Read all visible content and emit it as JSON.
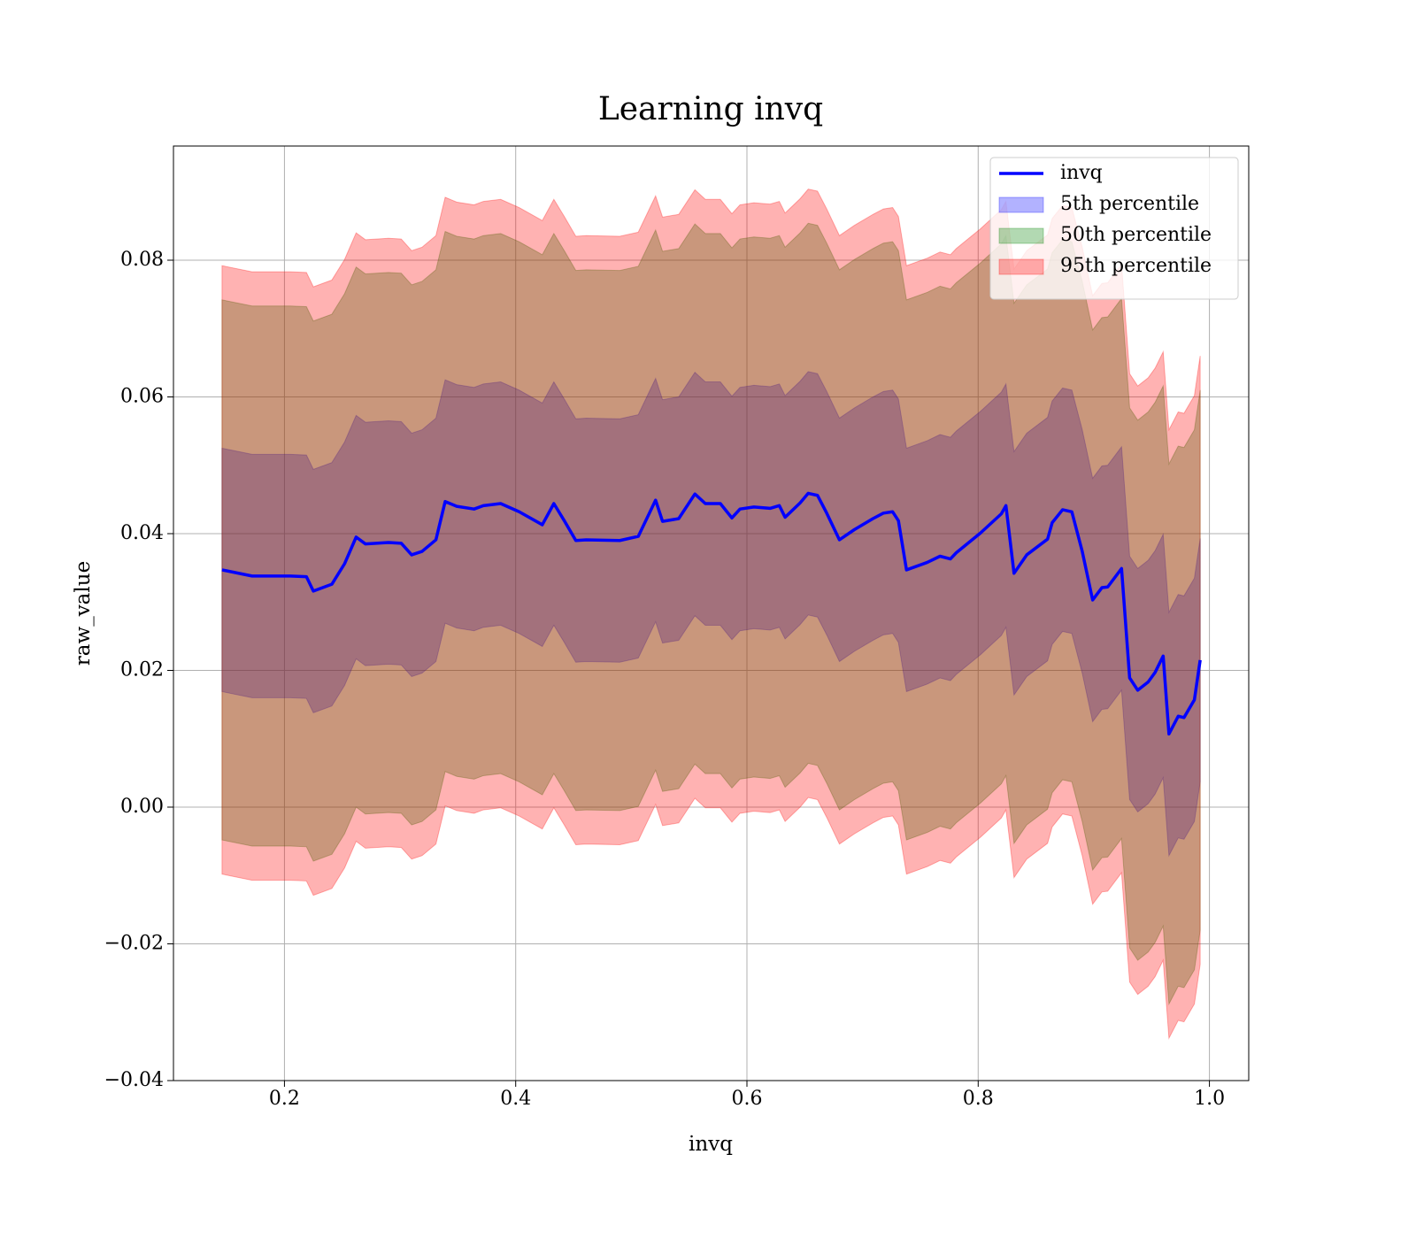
{
  "chart_data": {
    "type": "line",
    "title": "Learning invq",
    "xlabel": "invq",
    "ylabel": "raw_value",
    "x": [
      0.146,
      0.172,
      0.205,
      0.219,
      0.225,
      0.241,
      0.252,
      0.262,
      0.27,
      0.29,
      0.301,
      0.31,
      0.319,
      0.331,
      0.339,
      0.349,
      0.364,
      0.372,
      0.387,
      0.403,
      0.423,
      0.433,
      0.442,
      0.452,
      0.461,
      0.49,
      0.506,
      0.521,
      0.527,
      0.541,
      0.555,
      0.564,
      0.577,
      0.587,
      0.594,
      0.606,
      0.62,
      0.628,
      0.633,
      0.646,
      0.653,
      0.661,
      0.669,
      0.68,
      0.693,
      0.709,
      0.718,
      0.726,
      0.731,
      0.738,
      0.756,
      0.767,
      0.776,
      0.781,
      0.802,
      0.82,
      0.824,
      0.831,
      0.842,
      0.86,
      0.864,
      0.873,
      0.881,
      0.89,
      0.899,
      0.907,
      0.912,
      0.924,
      0.931,
      0.938,
      0.947,
      0.953,
      0.96,
      0.965,
      0.973,
      0.978,
      0.987,
      0.992
    ],
    "series": [
      {
        "name": "invq",
        "color": "#0000ff",
        "values": [
          0.0347,
          0.0338,
          0.0338,
          0.0337,
          0.0316,
          0.0326,
          0.0356,
          0.0395,
          0.0385,
          0.0387,
          0.0386,
          0.0369,
          0.0374,
          0.0391,
          0.0447,
          0.044,
          0.0436,
          0.0441,
          0.0444,
          0.0432,
          0.0413,
          0.0444,
          0.0419,
          0.039,
          0.0391,
          0.039,
          0.0396,
          0.0449,
          0.0418,
          0.0422,
          0.0458,
          0.0444,
          0.0444,
          0.0423,
          0.0436,
          0.0439,
          0.0437,
          0.0441,
          0.0424,
          0.0445,
          0.0459,
          0.0456,
          0.043,
          0.0391,
          0.0406,
          0.0422,
          0.043,
          0.0432,
          0.0419,
          0.0347,
          0.0358,
          0.0367,
          0.0363,
          0.0372,
          0.0401,
          0.0429,
          0.0441,
          0.0342,
          0.0369,
          0.0392,
          0.0416,
          0.0435,
          0.0432,
          0.0374,
          0.0303,
          0.0321,
          0.0322,
          0.0349,
          0.0189,
          0.0171,
          0.0183,
          0.0197,
          0.0221,
          0.0107,
          0.0133,
          0.0131,
          0.0157,
          0.0215
        ]
      }
    ],
    "bands": [
      {
        "name": "5th percentile",
        "color": "#0000ff",
        "lower": [
          0.0169,
          0.016,
          0.016,
          0.0159,
          0.0138,
          0.0148,
          0.0178,
          0.0217,
          0.0207,
          0.0209,
          0.0208,
          0.0191,
          0.0196,
          0.0213,
          0.0269,
          0.0262,
          0.0258,
          0.0263,
          0.0266,
          0.0254,
          0.0235,
          0.0266,
          0.0241,
          0.0212,
          0.0213,
          0.0212,
          0.0218,
          0.0271,
          0.024,
          0.0244,
          0.028,
          0.0266,
          0.0266,
          0.0245,
          0.0258,
          0.0261,
          0.0259,
          0.0263,
          0.0246,
          0.0267,
          0.0281,
          0.0278,
          0.0252,
          0.0213,
          0.0228,
          0.0244,
          0.0252,
          0.0254,
          0.0241,
          0.0169,
          0.018,
          0.0189,
          0.0185,
          0.0194,
          0.0223,
          0.0251,
          0.0263,
          0.0164,
          0.0191,
          0.0214,
          0.0238,
          0.0257,
          0.0254,
          0.0196,
          0.0125,
          0.0143,
          0.0144,
          0.0171,
          0.0011,
          -0.0007,
          0.0005,
          0.0019,
          0.0043,
          -0.0071,
          -0.0045,
          -0.0047,
          -0.0021,
          0.0037
        ],
        "upper": [
          0.0525,
          0.0516,
          0.0516,
          0.0515,
          0.0494,
          0.0504,
          0.0534,
          0.0573,
          0.0563,
          0.0565,
          0.0564,
          0.0547,
          0.0552,
          0.0569,
          0.0625,
          0.0618,
          0.0614,
          0.0619,
          0.0622,
          0.061,
          0.0591,
          0.0622,
          0.0597,
          0.0568,
          0.0569,
          0.0568,
          0.0574,
          0.0627,
          0.0596,
          0.06,
          0.0636,
          0.0622,
          0.0622,
          0.0601,
          0.0614,
          0.0617,
          0.0615,
          0.0619,
          0.0602,
          0.0623,
          0.0637,
          0.0634,
          0.0608,
          0.0569,
          0.0584,
          0.06,
          0.0608,
          0.061,
          0.0597,
          0.0525,
          0.0536,
          0.0545,
          0.0541,
          0.055,
          0.0579,
          0.0607,
          0.0619,
          0.052,
          0.0547,
          0.057,
          0.0594,
          0.0613,
          0.061,
          0.0552,
          0.0481,
          0.0499,
          0.05,
          0.0527,
          0.0367,
          0.0349,
          0.0361,
          0.0375,
          0.0399,
          0.0285,
          0.0311,
          0.0309,
          0.0335,
          0.0393
        ]
      },
      {
        "name": "50th percentile",
        "color": "#008000",
        "lower": [
          -0.0048,
          -0.0057,
          -0.0057,
          -0.0058,
          -0.0079,
          -0.0069,
          -0.0039,
          0,
          -0.001,
          -0.0008,
          -0.0009,
          -0.0026,
          -0.0021,
          -0.0004,
          0.0052,
          0.0045,
          0.0041,
          0.0046,
          0.0049,
          0.0037,
          0.0018,
          0.0049,
          0.0024,
          -0.0005,
          -0.0004,
          -0.0005,
          0.0001,
          0.0054,
          0.0023,
          0.0027,
          0.0063,
          0.0049,
          0.0049,
          0.0028,
          0.0041,
          0.0044,
          0.0042,
          0.0046,
          0.0029,
          0.005,
          0.0064,
          0.0061,
          0.0035,
          -0.0004,
          0.0011,
          0.0027,
          0.0035,
          0.0037,
          0.0024,
          -0.0048,
          -0.0037,
          -0.0028,
          -0.0032,
          -0.0023,
          0.0006,
          0.0034,
          0.0046,
          -0.0053,
          -0.0026,
          -0.0003,
          0.0021,
          0.004,
          0.0037,
          -0.0021,
          -0.0092,
          -0.0074,
          -0.0073,
          -0.0046,
          -0.0206,
          -0.0224,
          -0.0212,
          -0.0198,
          -0.0174,
          -0.0288,
          -0.0262,
          -0.0264,
          -0.0238,
          -0.018
        ],
        "upper": [
          0.0742,
          0.0733,
          0.0733,
          0.0732,
          0.0711,
          0.0721,
          0.0751,
          0.079,
          0.078,
          0.0782,
          0.0781,
          0.0764,
          0.0769,
          0.0786,
          0.0842,
          0.0835,
          0.0831,
          0.0836,
          0.0839,
          0.0827,
          0.0808,
          0.0839,
          0.0814,
          0.0785,
          0.0786,
          0.0785,
          0.0791,
          0.0844,
          0.0813,
          0.0817,
          0.0853,
          0.0839,
          0.0839,
          0.0818,
          0.0831,
          0.0834,
          0.0832,
          0.0836,
          0.0819,
          0.084,
          0.0854,
          0.0851,
          0.0825,
          0.0786,
          0.0801,
          0.0817,
          0.0825,
          0.0827,
          0.0814,
          0.0742,
          0.0753,
          0.0762,
          0.0758,
          0.0767,
          0.0796,
          0.0824,
          0.0836,
          0.0737,
          0.0764,
          0.0787,
          0.0811,
          0.083,
          0.0827,
          0.0769,
          0.0698,
          0.0716,
          0.0717,
          0.0744,
          0.0584,
          0.0566,
          0.0578,
          0.0592,
          0.0616,
          0.0502,
          0.0528,
          0.0526,
          0.0552,
          0.061
        ]
      },
      {
        "name": "95th percentile",
        "color": "#ff0000",
        "lower": [
          -0.0098,
          -0.0107,
          -0.0107,
          -0.0108,
          -0.0129,
          -0.0119,
          -0.0089,
          -0.005,
          -0.006,
          -0.0058,
          -0.0059,
          -0.0076,
          -0.0071,
          -0.0054,
          0.0002,
          -0.0005,
          -0.0009,
          -0.0004,
          -0.0001,
          -0.0013,
          -0.0032,
          -0.0001,
          -0.0026,
          -0.0055,
          -0.0054,
          -0.0055,
          -0.0049,
          0.0004,
          -0.0027,
          -0.0023,
          0.0013,
          -0.0001,
          -0.0001,
          -0.0022,
          -0.0009,
          -0.0006,
          -0.0008,
          -0.0004,
          -0.0021,
          0,
          0.0014,
          0.0011,
          -0.0015,
          -0.0054,
          -0.0039,
          -0.0023,
          -0.0015,
          -0.0013,
          -0.0026,
          -0.0098,
          -0.0087,
          -0.0078,
          -0.0082,
          -0.0073,
          -0.0044,
          -0.0016,
          -0.0004,
          -0.0103,
          -0.0076,
          -0.0053,
          -0.0029,
          -0.001,
          -0.0013,
          -0.0071,
          -0.0142,
          -0.0124,
          -0.0123,
          -0.0096,
          -0.0256,
          -0.0274,
          -0.0262,
          -0.0248,
          -0.0224,
          -0.0338,
          -0.0312,
          -0.0314,
          -0.0288,
          -0.023
        ],
        "upper": [
          0.0792,
          0.0783,
          0.0783,
          0.0782,
          0.0761,
          0.0771,
          0.0801,
          0.084,
          0.083,
          0.0832,
          0.0831,
          0.0814,
          0.0819,
          0.0836,
          0.0892,
          0.0885,
          0.0881,
          0.0886,
          0.0889,
          0.0877,
          0.0858,
          0.0889,
          0.0864,
          0.0835,
          0.0836,
          0.0835,
          0.0841,
          0.0894,
          0.0863,
          0.0867,
          0.0903,
          0.0889,
          0.0889,
          0.0868,
          0.0881,
          0.0884,
          0.0882,
          0.0886,
          0.0869,
          0.089,
          0.0904,
          0.0901,
          0.0875,
          0.0836,
          0.0851,
          0.0867,
          0.0875,
          0.0877,
          0.0864,
          0.0792,
          0.0803,
          0.0812,
          0.0808,
          0.0817,
          0.0846,
          0.0874,
          0.0886,
          0.0787,
          0.0814,
          0.0837,
          0.0861,
          0.088,
          0.0877,
          0.0819,
          0.0748,
          0.0766,
          0.0767,
          0.0794,
          0.0634,
          0.0616,
          0.0628,
          0.0642,
          0.0666,
          0.0552,
          0.0578,
          0.0576,
          0.0602,
          0.066
        ]
      }
    ],
    "band_alpha": 0.3,
    "xlim": [
      0.104,
      1.034
    ],
    "ylim": [
      -0.04,
      0.0967
    ],
    "xticks": [
      0.2,
      0.4,
      0.6,
      0.8,
      {
        "value": 1,
        "label": "1.0"
      }
    ],
    "yticks": [
      {
        "value": -0.04,
        "label": "−0.04"
      },
      {
        "value": -0.02,
        "label": "−0.02"
      },
      {
        "value": 0,
        "label": "0.00"
      },
      0.02,
      0.04,
      0.06,
      0.08
    ],
    "grid": true,
    "legend": "upper right"
  }
}
